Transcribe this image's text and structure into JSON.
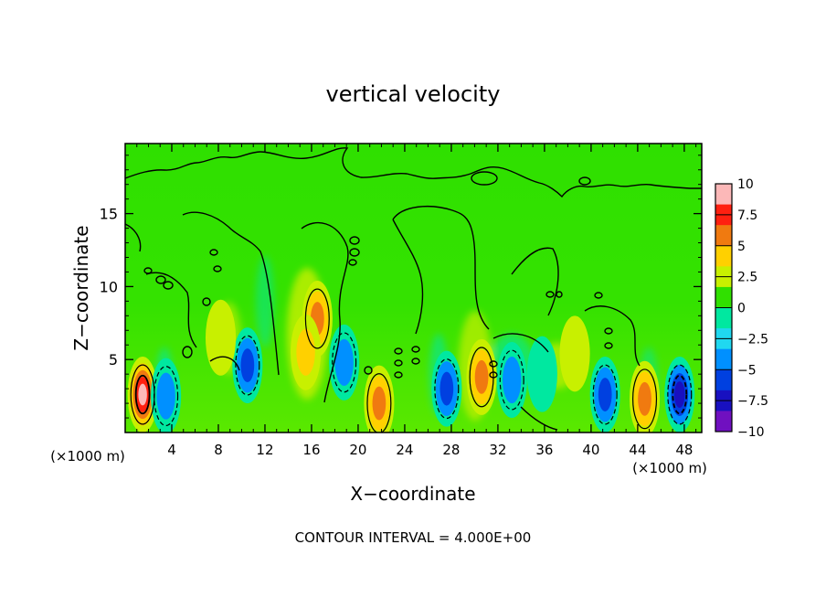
{
  "chart_data": {
    "type": "heatmap",
    "title": "vertical velocity",
    "xlabel": "X−coordinate",
    "ylabel": "Z−coordinate",
    "x_unit_left": "(×1000 m)",
    "x_unit_right": "(×1000 m)",
    "footer": "CONTOUR INTERVAL = 4.000E+00",
    "xlim": [
      0,
      49.5
    ],
    "ylim": [
      0,
      19.8
    ],
    "x_ticks": [
      4,
      8,
      12,
      16,
      20,
      24,
      28,
      32,
      36,
      40,
      44,
      48
    ],
    "x_tick_labels": [
      "4",
      "8",
      "12",
      "16",
      "20",
      "24",
      "28",
      "32",
      "36",
      "40",
      "44",
      "48"
    ],
    "y_ticks": [
      5,
      10,
      15
    ],
    "y_tick_labels": [
      "5",
      "10",
      "15"
    ],
    "contour_interval": 4.0,
    "colorbar": {
      "range": [
        -10,
        10
      ],
      "ticks": [
        10,
        7.5,
        5,
        2.5,
        0,
        -2.5,
        -5,
        -7.5,
        -10
      ],
      "tick_labels": [
        "10",
        "7.5",
        "5",
        "2.5",
        "0",
        "−2.5",
        "−5",
        "−7.5",
        "−10"
      ],
      "colors": [
        "#fcb8b8",
        "#ff2010",
        "#f07a10",
        "#ffd000",
        "#c8f000",
        "#30e000",
        "#00e8a0",
        "#20d8f0",
        "#0090ff",
        "#0040e0",
        "#1810c0",
        "#7010c0"
      ]
    },
    "features": [
      {
        "x": 1.5,
        "z": 2.6,
        "value": 11
      },
      {
        "x": 3.5,
        "z": 2.5,
        "value": -4
      },
      {
        "x": 10.5,
        "z": 4.6,
        "value": -7
      },
      {
        "x": 16.5,
        "z": 7.8,
        "value": 7
      },
      {
        "x": 15.5,
        "z": 5.5,
        "value": 3.5
      },
      {
        "x": 18.8,
        "z": 4.8,
        "value": -5
      },
      {
        "x": 21.8,
        "z": 2.0,
        "value": 6.5
      },
      {
        "x": 27.6,
        "z": 3.0,
        "value": -7
      },
      {
        "x": 30.6,
        "z": 3.8,
        "value": 7
      },
      {
        "x": 33.2,
        "z": 3.6,
        "value": -4
      },
      {
        "x": 35.8,
        "z": 4.0,
        "value": -3
      },
      {
        "x": 41.2,
        "z": 2.6,
        "value": -7
      },
      {
        "x": 44.6,
        "z": 2.3,
        "value": 7
      },
      {
        "x": 47.6,
        "z": 2.6,
        "value": -8
      },
      {
        "x": 38.6,
        "z": 5.4,
        "value": 2.5
      },
      {
        "x": 8.2,
        "z": 6.5,
        "value": 2
      }
    ]
  }
}
